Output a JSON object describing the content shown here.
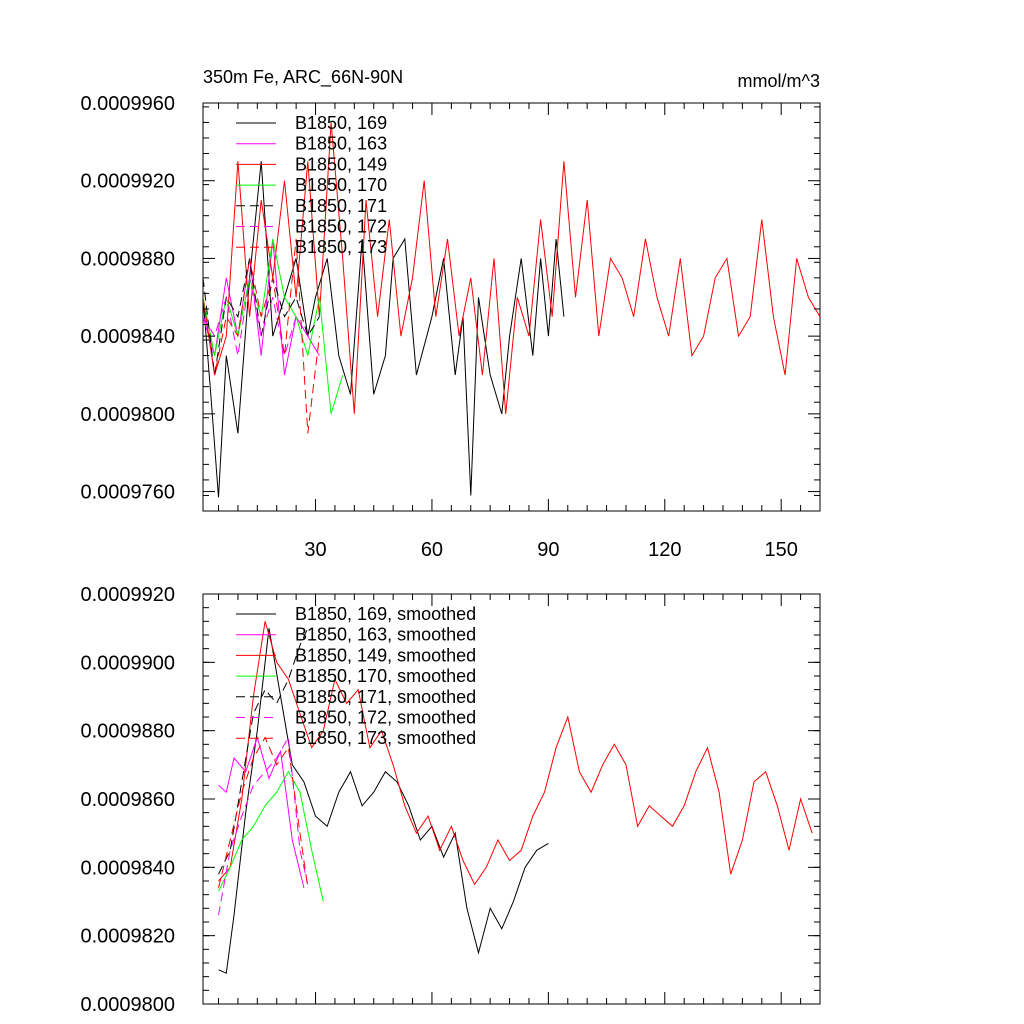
{
  "chart_data": [
    {
      "type": "line",
      "title_left": "350m Fe, ARC_66N-90N",
      "title_right": "mmol/m^3",
      "xlabel": "",
      "ylabel": "",
      "xlim": [
        1,
        160
      ],
      "ylim": [
        0.000975,
        0.000996
      ],
      "xticks": [
        30,
        60,
        90,
        120,
        150
      ],
      "xtick_labels": [
        "30",
        "60",
        "90",
        "120",
        "150"
      ],
      "yticks": [
        0.000976,
        0.00098,
        0.000984,
        0.000988,
        0.000992,
        0.000996
      ],
      "ytick_labels": [
        "0.0009760",
        "0.0009800",
        "0.0009840",
        "0.0009880",
        "0.0009920",
        "0.0009960"
      ],
      "legend_position": "top-left",
      "series": [
        {
          "name": "B1850, 169",
          "color": "#000000",
          "dash": "solid",
          "x": [
            1,
            3,
            5,
            7,
            10,
            13,
            16,
            19,
            22,
            25,
            28,
            30,
            33,
            36,
            39,
            42,
            45,
            48,
            50,
            53,
            56,
            60,
            63,
            66,
            68,
            70,
            72,
            75,
            78,
            80,
            83,
            86,
            88,
            90,
            92,
            94
          ],
          "y": [
            0.000986,
            0.000981,
            0.0009757,
            0.000983,
            0.000979,
            0.000987,
            0.000993,
            0.000984,
            0.000986,
            0.000988,
            0.000984,
            0.000986,
            0.000988,
            0.000983,
            0.000981,
            0.000989,
            0.000981,
            0.000983,
            0.000988,
            0.000989,
            0.000982,
            0.000985,
            0.000988,
            0.000982,
            0.000985,
            0.0009758,
            0.000986,
            0.000982,
            0.00098,
            0.000984,
            0.000988,
            0.000983,
            0.000988,
            0.000984,
            0.000989,
            0.000985
          ]
        },
        {
          "name": "B1850, 163",
          "color": "#ff00ff",
          "dash": "solid",
          "x": [
            1,
            4,
            7,
            10,
            13,
            16,
            19,
            22,
            25,
            28,
            31
          ],
          "y": [
            0.000985,
            0.000983,
            0.000987,
            0.000984,
            0.000988,
            0.000983,
            0.000989,
            0.000982,
            0.000985,
            0.000984,
            0.000983
          ]
        },
        {
          "name": "B1850, 149",
          "color": "#ff0000",
          "dash": "solid",
          "x": [
            1,
            4,
            7,
            10,
            13,
            16,
            19,
            22,
            25,
            28,
            31,
            34,
            37,
            40,
            43,
            46,
            49,
            52,
            55,
            58,
            61,
            64,
            67,
            70,
            73,
            76,
            79,
            82,
            85,
            88,
            91,
            94,
            97,
            100,
            103,
            106,
            109,
            112,
            115,
            118,
            121,
            124,
            127,
            130,
            133,
            136,
            139,
            142,
            145,
            148,
            151,
            154,
            157,
            160
          ],
          "y": [
            0.000986,
            0.000982,
            0.000984,
            0.000993,
            0.000985,
            0.000991,
            0.000987,
            0.000992,
            0.000986,
            0.000993,
            0.000985,
            0.000995,
            0.000988,
            0.00098,
            0.000991,
            0.000985,
            0.00099,
            0.000984,
            0.000987,
            0.000992,
            0.000985,
            0.000989,
            0.000984,
            0.000987,
            0.000982,
            0.000988,
            0.00098,
            0.000986,
            0.000984,
            0.00099,
            0.000985,
            0.000993,
            0.000986,
            0.000991,
            0.000984,
            0.000988,
            0.000987,
            0.000985,
            0.000989,
            0.000986,
            0.000984,
            0.000988,
            0.000983,
            0.000984,
            0.000987,
            0.000988,
            0.000984,
            0.000985,
            0.00099,
            0.000985,
            0.000982,
            0.000988,
            0.000986,
            0.000985
          ]
        },
        {
          "name": "B1850, 170",
          "color": "#00ff00",
          "dash": "solid",
          "x": [
            1,
            4,
            7,
            10,
            13,
            16,
            19,
            22,
            25,
            28,
            31,
            34,
            37
          ],
          "y": [
            0.000986,
            0.000983,
            0.000986,
            0.000984,
            0.000987,
            0.000985,
            0.000989,
            0.000986,
            0.000985,
            0.000983,
            0.000986,
            0.00098,
            0.000982
          ]
        },
        {
          "name": "B1850, 171",
          "color": "#000000",
          "dash": "dashed",
          "x": [
            1,
            4,
            7,
            10,
            13,
            16,
            19,
            22,
            25,
            28,
            31
          ],
          "y": [
            0.000987,
            0.000982,
            0.000986,
            0.000985,
            0.000988,
            0.000984,
            0.000987,
            0.000985,
            0.000986,
            0.000984,
            0.000985
          ]
        },
        {
          "name": "B1850, 172",
          "color": "#ff00ff",
          "dash": "dashed",
          "x": [
            1,
            4,
            7,
            10,
            13,
            16,
            19,
            22,
            25,
            28
          ],
          "y": [
            0.000985,
            0.000984,
            0.000986,
            0.000983,
            0.000987,
            0.000984,
            0.000986,
            0.000983,
            0.000985,
            0.000984
          ]
        },
        {
          "name": "B1850, 173",
          "color": "#ff0000",
          "dash": "dashed",
          "x": [
            1,
            4,
            7,
            10,
            13,
            16,
            19,
            22,
            25,
            28,
            31
          ],
          "y": [
            0.000986,
            0.000982,
            0.000985,
            0.000984,
            0.000988,
            0.000985,
            0.000987,
            0.000983,
            0.000989,
            0.000979,
            0.000984
          ]
        }
      ]
    },
    {
      "type": "line",
      "title_left": "",
      "title_right": "",
      "xlabel": "",
      "ylabel": "",
      "xlim": [
        1,
        160
      ],
      "ylim": [
        0.00098,
        0.000992
      ],
      "xticks": [
        30,
        60,
        90,
        120,
        150
      ],
      "xtick_labels": [],
      "yticks": [
        0.00098,
        0.000982,
        0.000984,
        0.000986,
        0.000988,
        0.00099,
        0.000992
      ],
      "ytick_labels": [
        "0.0009800",
        "0.0009820",
        "0.0009840",
        "0.0009860",
        "0.0009880",
        "0.0009900",
        "0.0009920"
      ],
      "legend_position": "top-left",
      "series": [
        {
          "name": "B1850, 169, smoothed",
          "color": "#000000",
          "dash": "solid",
          "x": [
            5,
            7,
            9,
            12,
            15,
            18,
            21,
            24,
            27,
            30,
            33,
            36,
            39,
            42,
            45,
            48,
            51,
            54,
            57,
            60,
            63,
            66,
            69,
            72,
            75,
            78,
            81,
            84,
            87,
            90
          ],
          "y": [
            0.000981,
            0.0009809,
            0.0009826,
            0.0009856,
            0.000988,
            0.000991,
            0.000989,
            0.000987,
            0.0009865,
            0.0009855,
            0.0009852,
            0.0009862,
            0.0009868,
            0.0009858,
            0.0009862,
            0.0009868,
            0.0009865,
            0.0009858,
            0.0009848,
            0.0009852,
            0.0009843,
            0.000985,
            0.0009828,
            0.0009815,
            0.0009828,
            0.0009822,
            0.000983,
            0.000984,
            0.0009845,
            0.0009847
          ]
        },
        {
          "name": "B1850, 163, smoothed",
          "color": "#ff00ff",
          "dash": "solid",
          "x": [
            5,
            7,
            9,
            12,
            15,
            18,
            21,
            24,
            27
          ],
          "y": [
            0.0009864,
            0.0009862,
            0.0009872,
            0.0009868,
            0.0009878,
            0.0009866,
            0.0009874,
            0.0009848,
            0.0009834
          ]
        },
        {
          "name": "B1850, 149, smoothed",
          "color": "#ff0000",
          "dash": "solid",
          "x": [
            5,
            8,
            11,
            14,
            17,
            20,
            23,
            26,
            29,
            32,
            35,
            38,
            41,
            44,
            47,
            50,
            53,
            56,
            59,
            62,
            65,
            68,
            71,
            74,
            77,
            80,
            83,
            86,
            89,
            92,
            95,
            98,
            101,
            104,
            107,
            110,
            113,
            116,
            119,
            122,
            125,
            128,
            131,
            134,
            137,
            140,
            143,
            146,
            149,
            152,
            155,
            158
          ],
          "y": [
            0.0009836,
            0.000984,
            0.000986,
            0.000989,
            0.0009912,
            0.00099,
            0.0009895,
            0.0009885,
            0.0009875,
            0.000988,
            0.0009895,
            0.0009888,
            0.0009892,
            0.0009875,
            0.000988,
            0.000987,
            0.0009858,
            0.000985,
            0.0009855,
            0.0009845,
            0.0009852,
            0.0009842,
            0.0009835,
            0.000984,
            0.0009848,
            0.0009842,
            0.0009845,
            0.0009855,
            0.0009862,
            0.0009875,
            0.0009884,
            0.0009868,
            0.0009862,
            0.000987,
            0.0009876,
            0.000987,
            0.0009852,
            0.0009858,
            0.0009855,
            0.0009852,
            0.0009858,
            0.0009868,
            0.0009875,
            0.0009862,
            0.0009838,
            0.0009848,
            0.0009865,
            0.0009868,
            0.0009858,
            0.0009845,
            0.000986,
            0.000985
          ]
        },
        {
          "name": "B1850, 170, smoothed",
          "color": "#00ff00",
          "dash": "solid",
          "x": [
            5,
            8,
            11,
            14,
            17,
            20,
            23,
            26,
            29,
            32
          ],
          "y": [
            0.0009833,
            0.000984,
            0.0009848,
            0.0009852,
            0.0009858,
            0.0009862,
            0.0009868,
            0.0009862,
            0.0009845,
            0.000983
          ]
        },
        {
          "name": "B1850, 171, smoothed",
          "color": "#000000",
          "dash": "dashed",
          "x": [
            5,
            8,
            11,
            14,
            17,
            20,
            23,
            26,
            28
          ],
          "y": [
            0.0009838,
            0.0009845,
            0.0009865,
            0.0009885,
            0.0009892,
            0.0009888,
            0.0009895,
            0.0009905,
            0.000991
          ]
        },
        {
          "name": "B1850, 172, smoothed",
          "color": "#ff00ff",
          "dash": "dashed",
          "x": [
            5,
            8,
            11,
            14,
            17,
            20,
            23,
            26,
            28
          ],
          "y": [
            0.0009826,
            0.0009845,
            0.0009855,
            0.0009864,
            0.0009868,
            0.0009872,
            0.0009878,
            0.0009845,
            0.0009835
          ]
        },
        {
          "name": "B1850, 173, smoothed",
          "color": "#ff0000",
          "dash": "dashed",
          "x": [
            5,
            8,
            11,
            14,
            17,
            20,
            23,
            26,
            28
          ],
          "y": [
            0.0009834,
            0.0009848,
            0.0009862,
            0.0009872,
            0.0009878,
            0.000987,
            0.0009875,
            0.000985,
            0.0009834
          ]
        }
      ]
    }
  ]
}
